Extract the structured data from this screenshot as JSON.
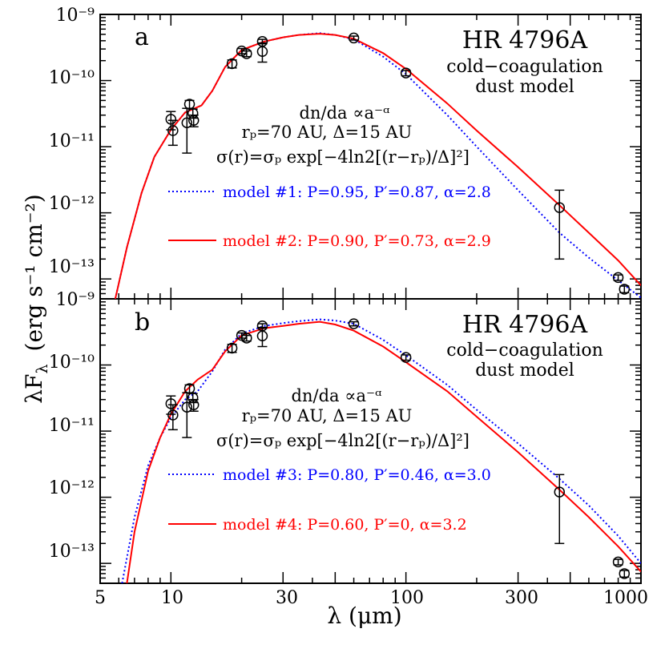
{
  "axes": {
    "xlabel": "λ (μm)",
    "ylabel": "λF",
    "ylabel_sub": "λ",
    "ylabel_units": "(erg s⁻¹ cm⁻²)",
    "x_tick_labels": [
      "5",
      "10",
      "30",
      "100",
      "300",
      "1000"
    ],
    "y_tick_labels": [
      "10⁻⁹",
      "10⁻¹⁰",
      "10⁻¹¹",
      "10⁻¹²",
      "10⁻¹³"
    ]
  },
  "panels": [
    {
      "letter": "a",
      "star_name": "HR 4796A",
      "subtitle_1": "cold−coagulation",
      "subtitle_2": "dust model",
      "formula_1": "dn/da ∝a⁻ᵅ",
      "formula_2": "rₚ=70 AU, Δ=15 AU",
      "formula_3": "σ(r)=σₚ exp[−4ln2[(r−rₚ)/Δ]²]",
      "legend_1": "model #1: P=0.95, P′=0.87, α=2.8",
      "legend_2": "model #2: P=0.90, P′=0.73, α=2.9"
    },
    {
      "letter": "b",
      "star_name": "HR 4796A",
      "subtitle_1": "cold−coagulation",
      "subtitle_2": "dust model",
      "formula_1": "dn/da ∝a⁻ᵅ",
      "formula_2": "rₚ=70 AU, Δ=15 AU",
      "formula_3": "σ(r)=σₚ exp[−4ln2[(r−rₚ)/Δ]²]",
      "legend_1": "model #3: P=0.80, P′=0.46, α=3.0",
      "legend_2": "model #4: P=0.60, P′=0, α=3.2"
    }
  ],
  "chart_data": [
    {
      "type": "line",
      "panel": "a",
      "xlabel": "λ (μm)",
      "ylabel": "λF_λ (erg s⁻¹ cm⁻²)",
      "x_scale": "log",
      "y_scale": "log",
      "xlim": [
        5,
        1000
      ],
      "ylim": [
        5e-14,
        1e-09
      ],
      "colors": {
        "model_dotted": "#0000ff",
        "model_solid": "#ff0000",
        "data": "#000000"
      },
      "observations": [
        {
          "x": 10.0,
          "y": 2.6e-11,
          "ylo": 1.8e-11,
          "yhi": 3.4e-11
        },
        {
          "x": 10.2,
          "y": 1.75e-11,
          "ylo": 1.05e-11,
          "yhi": 2.5e-11
        },
        {
          "x": 11.7,
          "y": 2.3e-11,
          "ylo": 8e-12,
          "yhi": 3.8e-11
        },
        {
          "x": 12.0,
          "y": 4.4e-11,
          "ylo": 3.8e-11,
          "yhi": 5e-11
        },
        {
          "x": 12.4,
          "y": 3.2e-11,
          "ylo": 2.7e-11,
          "yhi": 3.7e-11
        },
        {
          "x": 12.5,
          "y": 2.5e-11,
          "ylo": 2e-11,
          "yhi": 3e-11
        },
        {
          "x": 18.2,
          "y": 1.8e-10,
          "ylo": 1.55e-10,
          "yhi": 2.05e-10
        },
        {
          "x": 20.0,
          "y": 2.8e-10,
          "ylo": 2.55e-10,
          "yhi": 3.05e-10
        },
        {
          "x": 21.0,
          "y": 2.55e-10,
          "ylo": 2.3e-10,
          "yhi": 2.8e-10
        },
        {
          "x": 24.5,
          "y": 3.9e-10,
          "ylo": 3.6e-10,
          "yhi": 4.2e-10
        },
        {
          "x": 24.5,
          "y": 2.75e-10,
          "ylo": 1.9e-10,
          "yhi": 3.7e-10
        },
        {
          "x": 60.0,
          "y": 4.4e-10,
          "ylo": 4.1e-10,
          "yhi": 4.7e-10
        },
        {
          "x": 100.0,
          "y": 1.3e-10,
          "ylo": 1.18e-10,
          "yhi": 1.42e-10
        },
        {
          "x": 450.0,
          "y": 1.2e-12,
          "ylo": 2e-13,
          "yhi": 2.2e-12
        },
        {
          "x": 800.0,
          "y": 1.05e-13,
          "ylo": 9.5e-14,
          "yhi": 1.15e-13
        },
        {
          "x": 850.0,
          "y": 7e-14,
          "ylo": 6.2e-14,
          "yhi": 7.8e-14
        }
      ],
      "series": [
        {
          "name": "model #1: P=0.95, P′=0.87, α=2.8",
          "style": "dotted",
          "x": [
            5.8,
            6.5,
            7.5,
            8.5,
            10,
            11.5,
            13.5,
            15,
            17,
            20,
            25,
            30,
            35,
            43,
            50,
            60,
            80,
            100,
            150,
            200,
            300,
            450,
            600,
            800,
            1000
          ],
          "y": [
            5e-14,
            3e-13,
            2e-12,
            7e-12,
            1.8e-11,
            3.3e-11,
            4.2e-11,
            7e-11,
            1.6e-10,
            2.9e-10,
            3.9e-10,
            4.5e-10,
            4.9e-10,
            5.2e-10,
            4.9e-10,
            4.2e-10,
            2.3e-10,
            1.25e-10,
            3e-11,
            1e-11,
            2.2e-12,
            5e-13,
            2.1e-13,
            9.5e-14,
            5.2e-14
          ]
        },
        {
          "name": "model #2: P=0.90, P′=0.73, α=2.9",
          "style": "solid",
          "x": [
            5.8,
            6.5,
            7.5,
            8.5,
            10,
            11.5,
            13.5,
            15,
            17,
            20,
            25,
            30,
            35,
            43,
            50,
            60,
            80,
            100,
            150,
            200,
            300,
            450,
            600,
            800,
            1000
          ],
          "y": [
            5e-14,
            3e-13,
            2e-12,
            7e-12,
            1.8e-11,
            3.3e-11,
            4.2e-11,
            7e-11,
            1.6e-10,
            2.9e-10,
            3.9e-10,
            4.5e-10,
            4.9e-10,
            5.1e-10,
            4.9e-10,
            4.3e-10,
            2.6e-10,
            1.5e-10,
            4.5e-11,
            1.75e-11,
            4.9e-12,
            1.3e-12,
            5e-13,
            1.9e-13,
            8e-14
          ]
        }
      ]
    },
    {
      "type": "line",
      "panel": "b",
      "xlabel": "λ (μm)",
      "ylabel": "λF_λ (erg s⁻¹ cm⁻²)",
      "x_scale": "log",
      "y_scale": "log",
      "xlim": [
        5,
        1000
      ],
      "ylim": [
        5e-14,
        1e-09
      ],
      "colors": {
        "model_dotted": "#0000ff",
        "model_solid": "#ff0000",
        "data": "#000000"
      },
      "observations": [
        {
          "x": 10.0,
          "y": 2.6e-11,
          "ylo": 1.8e-11,
          "yhi": 3.4e-11
        },
        {
          "x": 10.2,
          "y": 1.75e-11,
          "ylo": 1.05e-11,
          "yhi": 2.5e-11
        },
        {
          "x": 11.7,
          "y": 2.3e-11,
          "ylo": 8e-12,
          "yhi": 3.8e-11
        },
        {
          "x": 12.0,
          "y": 4.4e-11,
          "ylo": 3.8e-11,
          "yhi": 5e-11
        },
        {
          "x": 12.4,
          "y": 3.2e-11,
          "ylo": 2.7e-11,
          "yhi": 3.7e-11
        },
        {
          "x": 12.5,
          "y": 2.5e-11,
          "ylo": 2e-11,
          "yhi": 3e-11
        },
        {
          "x": 18.2,
          "y": 1.8e-10,
          "ylo": 1.55e-10,
          "yhi": 2.05e-10
        },
        {
          "x": 20.0,
          "y": 2.8e-10,
          "ylo": 2.55e-10,
          "yhi": 3.05e-10
        },
        {
          "x": 21.0,
          "y": 2.55e-10,
          "ylo": 2.3e-10,
          "yhi": 2.8e-10
        },
        {
          "x": 24.5,
          "y": 3.9e-10,
          "ylo": 3.6e-10,
          "yhi": 4.2e-10
        },
        {
          "x": 24.5,
          "y": 2.75e-10,
          "ylo": 1.9e-10,
          "yhi": 3.7e-10
        },
        {
          "x": 60.0,
          "y": 4.2e-10,
          "ylo": 3.9e-10,
          "yhi": 4.5e-10
        },
        {
          "x": 100.0,
          "y": 1.3e-10,
          "ylo": 1.18e-10,
          "yhi": 1.42e-10
        },
        {
          "x": 450.0,
          "y": 1.2e-12,
          "ylo": 2e-13,
          "yhi": 2.2e-12
        },
        {
          "x": 800.0,
          "y": 1.05e-13,
          "ylo": 9.5e-14,
          "yhi": 1.15e-13
        },
        {
          "x": 850.0,
          "y": 7e-14,
          "ylo": 6.2e-14,
          "yhi": 7.8e-14
        }
      ],
      "series": [
        {
          "name": "model #3: P=0.80, P′=0.46, α=3.0",
          "style": "dotted",
          "x": [
            6.2,
            7,
            8,
            9,
            10,
            11.5,
            13,
            15,
            17,
            20,
            25,
            30,
            35,
            43,
            50,
            60,
            80,
            100,
            150,
            200,
            300,
            450,
            600,
            800,
            1000
          ],
          "y": [
            5e-14,
            5e-13,
            3e-12,
            8e-12,
            1.6e-11,
            3e-11,
            4e-11,
            8e-11,
            1.7e-10,
            3e-10,
            3.9e-10,
            4.3e-10,
            4.6e-10,
            4.9e-10,
            4.7e-10,
            4.2e-10,
            2.4e-10,
            1.4e-10,
            5e-11,
            2.1e-11,
            6.5e-12,
            1.9e-12,
            7.5e-13,
            2.6e-13,
            1e-13
          ]
        },
        {
          "name": "model #4: P=0.60, P′=0, α=3.2",
          "style": "solid",
          "x": [
            6.5,
            7,
            8,
            9,
            10,
            11.5,
            13,
            15,
            17,
            20,
            25,
            30,
            35,
            43,
            50,
            60,
            80,
            100,
            150,
            200,
            300,
            450,
            600,
            800,
            1000
          ],
          "y": [
            5e-14,
            3e-13,
            2.5e-12,
            8e-12,
            1.8e-11,
            4e-11,
            6e-11,
            8.5e-11,
            1.6e-10,
            2.8e-10,
            3.6e-10,
            3.9e-10,
            4.2e-10,
            4.5e-10,
            4.1e-10,
            3.3e-10,
            1.9e-10,
            1.1e-10,
            4e-11,
            1.65e-11,
            4.8e-12,
            1.3e-12,
            5e-13,
            1.8e-13,
            7.5e-14
          ]
        }
      ]
    }
  ]
}
